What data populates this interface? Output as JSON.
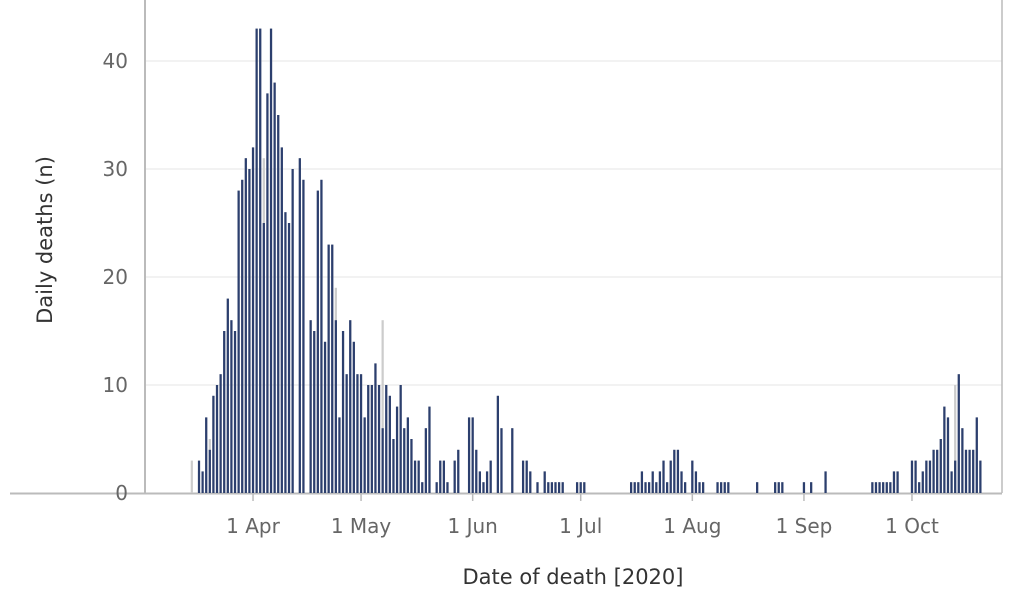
{
  "chart_data": {
    "type": "bar",
    "title": "",
    "xlabel": "Date of death [2020]",
    "ylabel": "Daily deaths (n)",
    "ylim": [
      0,
      45
    ],
    "yticks": [
      0,
      10,
      20,
      30,
      40
    ],
    "xlim": [
      "2020-03-02",
      "2020-10-26"
    ],
    "xticks": [
      {
        "date": "2020-04-01",
        "label": "1 Apr"
      },
      {
        "date": "2020-05-01",
        "label": "1 May"
      },
      {
        "date": "2020-06-01",
        "label": "1 Jun"
      },
      {
        "date": "2020-07-01",
        "label": "1 Jul"
      },
      {
        "date": "2020-08-01",
        "label": "1 Aug"
      },
      {
        "date": "2020-09-01",
        "label": "1 Sep"
      },
      {
        "date": "2020-10-01",
        "label": "1 Oct"
      }
    ],
    "grid": "horizontal",
    "legend": "none",
    "colors": {
      "main": "#2c3f6e",
      "secondary": "#cccccc",
      "grid": "#eeeeee",
      "axis": "#bbbbbb"
    },
    "series": [
      {
        "start_date": "2020-03-15",
        "values": [
          0,
          0,
          3,
          2,
          7,
          4,
          9,
          10,
          11,
          15,
          18,
          16,
          15,
          28,
          29,
          31,
          30,
          32,
          43,
          43,
          25,
          37,
          43,
          38,
          35,
          32,
          26,
          25,
          30,
          0,
          31,
          29,
          0,
          16,
          15,
          28,
          29,
          14,
          23,
          23,
          16,
          7,
          15,
          11,
          16,
          14,
          11,
          11,
          7,
          10,
          10,
          12,
          10,
          6,
          10,
          9,
          5,
          8,
          10,
          6,
          7,
          5,
          3,
          3,
          1,
          6,
          8,
          0,
          1,
          3,
          3,
          1,
          0,
          3,
          4,
          0,
          0,
          7,
          7,
          4,
          2,
          1,
          2,
          3,
          0,
          9,
          6,
          0,
          0,
          6,
          0,
          0,
          3,
          3,
          2,
          0,
          1,
          0,
          2,
          1,
          1,
          1,
          1,
          1,
          0,
          0,
          0,
          1,
          1,
          1,
          0,
          0,
          0,
          0,
          0,
          0,
          0,
          0,
          0,
          0,
          0,
          0,
          1,
          1,
          1,
          2,
          1,
          1,
          2,
          1,
          2,
          3,
          1,
          3,
          4,
          4,
          2,
          1,
          0,
          3,
          2,
          1,
          1,
          0,
          0,
          0,
          1,
          1,
          1,
          1,
          0,
          0,
          0,
          0,
          0,
          0,
          0,
          1,
          0,
          0,
          0,
          0,
          1,
          1,
          1,
          0,
          0,
          0,
          0,
          0,
          1,
          0,
          1,
          0,
          0,
          0,
          2,
          0,
          0,
          0,
          0,
          0,
          0,
          0,
          0,
          0,
          0,
          0,
          0,
          1,
          1,
          1,
          1,
          1,
          1,
          2,
          2,
          0,
          0,
          0,
          3,
          3,
          1,
          2,
          3,
          3,
          4,
          4,
          5,
          8,
          7,
          2,
          3,
          11,
          6,
          4,
          4,
          4,
          7,
          3
        ]
      },
      {
        "start_date": "2020-03-15",
        "values": [
          3,
          0,
          2,
          0,
          7,
          5,
          9,
          10,
          11,
          15,
          18,
          16,
          15,
          28,
          29,
          31,
          30,
          32,
          43,
          43,
          31,
          37,
          43,
          38,
          35,
          32,
          26,
          25,
          30,
          0,
          31,
          29,
          0,
          16,
          15,
          28,
          29,
          14,
          23,
          23,
          19,
          7,
          15,
          11,
          16,
          14,
          11,
          11,
          7,
          10,
          10,
          12,
          10,
          16,
          10,
          9,
          5,
          8,
          10,
          6,
          7,
          5,
          3,
          3,
          1,
          6,
          8,
          0,
          1,
          3,
          3,
          1,
          0,
          3,
          4,
          0,
          0,
          7,
          7,
          4,
          2,
          1,
          2,
          3,
          0,
          9,
          6,
          0,
          0,
          6,
          0,
          0,
          3,
          3,
          2,
          0,
          1,
          0,
          2,
          1,
          1,
          1,
          1,
          1,
          0,
          0,
          0,
          1,
          1,
          1,
          0,
          0,
          0,
          0,
          0,
          0,
          0,
          0,
          0,
          0,
          0,
          0,
          1,
          1,
          1,
          2,
          1,
          1,
          2,
          1,
          2,
          3,
          1,
          3,
          4,
          4,
          2,
          1,
          0,
          3,
          2,
          1,
          1,
          0,
          0,
          0,
          1,
          1,
          1,
          1,
          0,
          0,
          0,
          0,
          0,
          0,
          0,
          1,
          0,
          0,
          0,
          0,
          1,
          1,
          1,
          0,
          0,
          0,
          0,
          0,
          1,
          0,
          1,
          0,
          0,
          0,
          2,
          0,
          0,
          0,
          0,
          0,
          0,
          0,
          0,
          0,
          0,
          0,
          0,
          1,
          1,
          1,
          1,
          1,
          1,
          2,
          2,
          0,
          0,
          0,
          3,
          3,
          1,
          2,
          3,
          3,
          4,
          4,
          5,
          8,
          7,
          2,
          10,
          11,
          6,
          4,
          4,
          4,
          7,
          3
        ]
      }
    ]
  }
}
